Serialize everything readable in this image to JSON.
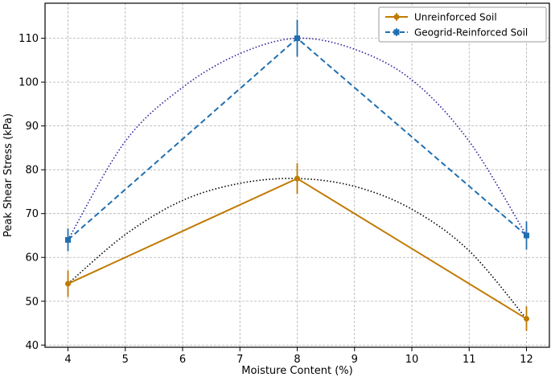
{
  "chart_data": {
    "type": "line",
    "title": "",
    "xlabel": "Moisture Content (%)",
    "ylabel": "Peak Shear Stress (kPa)",
    "xlim": [
      3.6,
      12.4
    ],
    "ylim": [
      39.5,
      118
    ],
    "xticks": [
      4,
      5,
      6,
      7,
      8,
      9,
      10,
      11,
      12
    ],
    "yticks": [
      40,
      50,
      60,
      70,
      80,
      90,
      100,
      110
    ],
    "grid": true,
    "legend_position": "top-right",
    "series": [
      {
        "name": "Unreinforced Soil",
        "color": "#c07a00",
        "linestyle": "solid",
        "marker": "circle",
        "x": [
          4,
          8,
          12
        ],
        "y": [
          54,
          78,
          46
        ],
        "yerr": [
          3,
          3.5,
          2.8
        ],
        "fit": {
          "linestyle": "dotted",
          "color": "#000000",
          "x": [
            4,
            5,
            6,
            7,
            8,
            9,
            10,
            11,
            12
          ],
          "y": [
            54,
            65.2,
            73,
            76.9,
            78,
            76.2,
            71,
            61.5,
            46
          ]
        }
      },
      {
        "name": "Geogrid-Reinforced Soil",
        "color": "#1f6fb0",
        "linestyle": "dashed",
        "marker": "square",
        "x": [
          4,
          8,
          12
        ],
        "y": [
          64,
          110,
          65
        ],
        "yerr": [
          2.6,
          4.2,
          3.2
        ],
        "fit": {
          "linestyle": "dotted",
          "color": "#2a1f9e",
          "x": [
            4,
            5,
            6,
            7,
            8,
            9,
            10,
            11,
            12
          ],
          "y": [
            64,
            86.5,
            98.8,
            106.5,
            110,
            107.5,
            100.5,
            86.5,
            65
          ]
        }
      }
    ]
  }
}
